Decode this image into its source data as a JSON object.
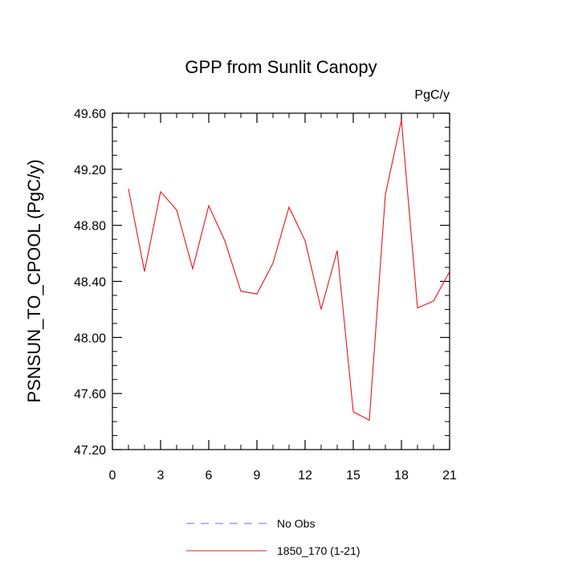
{
  "chart_data": {
    "type": "line",
    "title": "GPP from Sunlit Canopy",
    "units": "PgC/y",
    "ylabel": "PSNSUN_TO_CPOOL  (PgC/y)",
    "xlabel": "",
    "xlim": [
      0,
      21
    ],
    "ylim": [
      47.2,
      49.6
    ],
    "xticks": [
      0,
      3,
      6,
      9,
      12,
      15,
      18,
      21
    ],
    "xtick_labels": [
      "0",
      "3",
      "6",
      "9",
      "12",
      "15",
      "18",
      "21"
    ],
    "yticks": [
      47.2,
      47.6,
      48.0,
      48.4,
      48.8,
      49.2,
      49.6
    ],
    "ytick_labels": [
      "47.20",
      "47.60",
      "48.00",
      "48.40",
      "48.80",
      "49.20",
      "49.60"
    ],
    "grid": false,
    "legend_position": "bottom",
    "series": [
      {
        "name": "No Obs",
        "color": "#6f6fe0",
        "dash": "dashed",
        "x": [],
        "values": []
      },
      {
        "name": "1850_170 (1-21)",
        "color": "#e8141c",
        "dash": "solid",
        "x": [
          1,
          2,
          3,
          4,
          5,
          6,
          7,
          8,
          9,
          10,
          11,
          12,
          13,
          14,
          15,
          16,
          17,
          18,
          19,
          20,
          21
        ],
        "values": [
          49.06,
          48.47,
          49.04,
          48.91,
          48.49,
          48.94,
          48.69,
          48.33,
          48.31,
          48.53,
          48.93,
          48.69,
          48.2,
          48.62,
          47.47,
          47.41,
          49.02,
          49.55,
          48.21,
          48.26,
          48.47
        ]
      }
    ]
  }
}
